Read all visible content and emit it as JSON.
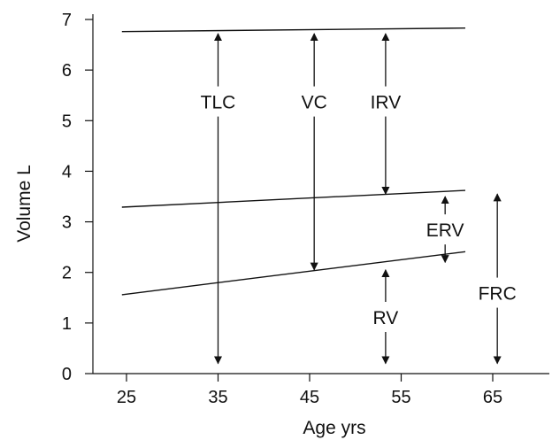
{
  "chart_data": {
    "type": "line",
    "xlabel": "Age yrs",
    "ylabel": "Volume L",
    "xlim": [
      23,
      62
    ],
    "ylim": [
      0,
      7
    ],
    "grid": false,
    "legend": "none",
    "x_ticks": [
      25,
      35,
      45,
      55,
      65
    ],
    "y_ticks": [
      0,
      1,
      2,
      3,
      4,
      5,
      6,
      7
    ],
    "series": [
      {
        "x": [
          24.5,
          62
        ],
        "y": [
          6.76,
          6.83
        ]
      },
      {
        "x": [
          24.5,
          62
        ],
        "y": [
          3.29,
          3.62
        ]
      },
      {
        "x": [
          24.5,
          62
        ],
        "y": [
          1.56,
          2.41
        ]
      }
    ],
    "annotations": [
      {
        "label": "TLC",
        "x": 35,
        "from": 0.2,
        "to": 6.72,
        "label_y": 5.38
      },
      {
        "label": "VC",
        "x": 45.5,
        "from": 2.05,
        "to": 6.72,
        "label_y": 5.38
      },
      {
        "label": "IRV",
        "x": 53.3,
        "from": 3.55,
        "to": 6.72,
        "label_y": 5.38
      },
      {
        "label": "ERV",
        "x": 59.8,
        "from": 2.2,
        "to": 3.5,
        "label_y": 2.85
      },
      {
        "label": "RV",
        "x": 53.3,
        "from": 0.2,
        "to": 2.05,
        "label_y": 1.12
      },
      {
        "label": "FRC",
        "x": 65.5,
        "from": 0.2,
        "to": 3.55,
        "label_y": 1.6
      }
    ],
    "colors": {
      "line": "#111111",
      "text": "#111111",
      "background": "#ffffff"
    }
  }
}
